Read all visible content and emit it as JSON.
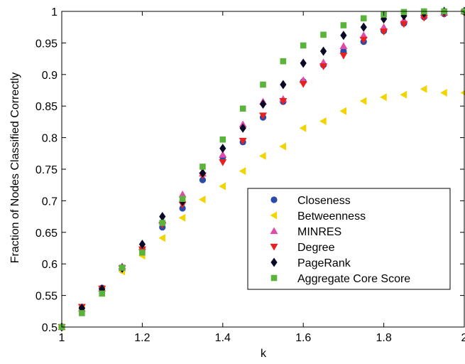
{
  "chart_data": {
    "type": "scatter",
    "xlabel": "k",
    "ylabel": "Fraction of Nodes Classified Correctly",
    "xlim": [
      1,
      2
    ],
    "ylim": [
      0.5,
      1
    ],
    "xticks": [
      "1",
      "1.2",
      "1.4",
      "1.6",
      "1.8",
      "2"
    ],
    "yticks": [
      "0.5",
      "0.55",
      "0.6",
      "0.65",
      "0.7",
      "0.75",
      "0.8",
      "0.85",
      "0.9",
      "0.95",
      "1"
    ],
    "legend_position": "bottom-right",
    "grid": false,
    "x": [
      1,
      1.05,
      1.1,
      1.15,
      1.2,
      1.25,
      1.3,
      1.35,
      1.4,
      1.45,
      1.5,
      1.55,
      1.6,
      1.65,
      1.7,
      1.75,
      1.8,
      1.85,
      1.9,
      1.95,
      2
    ],
    "series": [
      {
        "name": "Closeness",
        "marker": "circle",
        "color": "#2b4ba8",
        "values": [
          0.5,
          0.53,
          0.562,
          0.59,
          0.622,
          0.658,
          0.688,
          0.733,
          0.769,
          0.793,
          0.832,
          0.857,
          0.889,
          0.915,
          0.937,
          0.952,
          0.969,
          0.981,
          0.991,
          0.996,
          0.999
        ]
      },
      {
        "name": "Betweenness",
        "marker": "triangle-left",
        "color": "#f2d400",
        "values": [
          0.5,
          0.528,
          0.56,
          0.588,
          0.613,
          0.641,
          0.673,
          0.702,
          0.723,
          0.747,
          0.771,
          0.786,
          0.815,
          0.826,
          0.842,
          0.858,
          0.864,
          0.868,
          0.877,
          0.871,
          0.871
        ]
      },
      {
        "name": "MINRES",
        "marker": "triangle-up",
        "color": "#e04aa8",
        "values": [
          0.5,
          0.529,
          0.561,
          0.596,
          0.627,
          0.668,
          0.71,
          0.743,
          0.773,
          0.821,
          0.857,
          0.861,
          0.891,
          0.919,
          0.945,
          0.962,
          0.975,
          0.986,
          0.994,
          0.998,
          1.0
        ]
      },
      {
        "name": "Degree",
        "marker": "triangle-down",
        "color": "#e82020",
        "values": [
          0.5,
          0.532,
          0.561,
          0.593,
          0.623,
          0.662,
          0.694,
          0.74,
          0.761,
          0.795,
          0.835,
          0.858,
          0.885,
          0.913,
          0.93,
          0.955,
          0.968,
          0.98,
          0.99,
          0.996,
          0.998
        ]
      },
      {
        "name": "PageRank",
        "marker": "diamond",
        "color": "#0a0a28",
        "values": [
          0.5,
          0.53,
          0.56,
          0.593,
          0.631,
          0.675,
          0.699,
          0.744,
          0.783,
          0.815,
          0.853,
          0.884,
          0.918,
          0.937,
          0.962,
          0.975,
          0.988,
          0.993,
          0.997,
          1.0,
          1.0
        ]
      },
      {
        "name": "Aggregate Core Score",
        "marker": "square",
        "color": "#5ab43c",
        "values": [
          0.5,
          0.522,
          0.553,
          0.594,
          0.618,
          0.665,
          0.703,
          0.754,
          0.797,
          0.846,
          0.884,
          0.921,
          0.946,
          0.963,
          0.978,
          0.989,
          0.995,
          0.999,
          1.0,
          1.0,
          1.0
        ]
      }
    ]
  }
}
